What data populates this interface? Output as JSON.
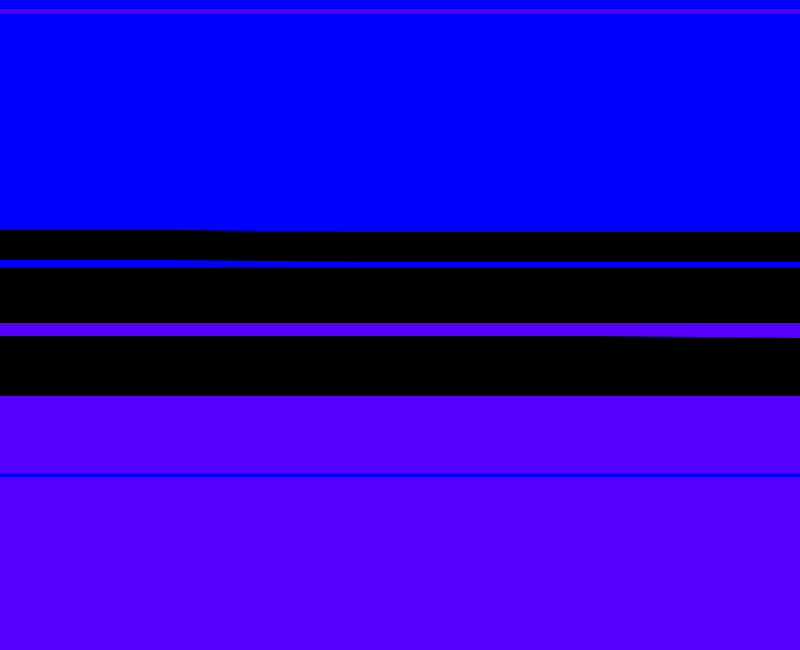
{
  "colors": {
    "blue": "#0000ff",
    "violet": "#5500ff",
    "thin_line": "#5a00f0",
    "black": "#000000"
  }
}
